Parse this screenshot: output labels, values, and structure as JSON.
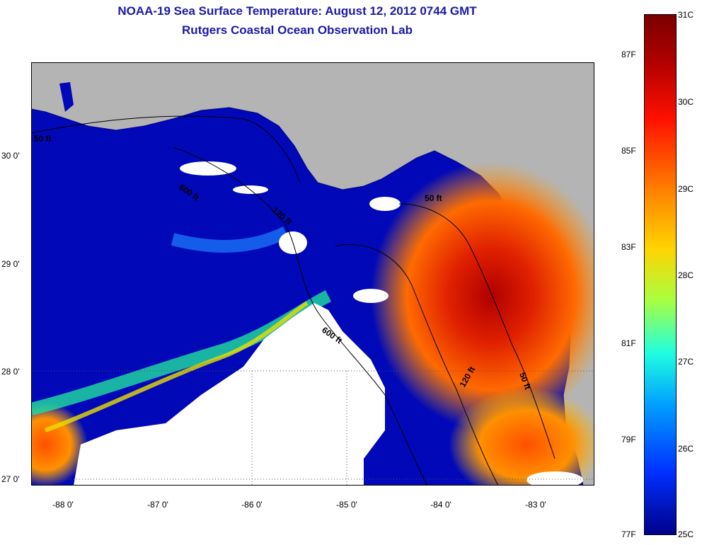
{
  "title": "NOAA-19 Sea Surface Temperature:  August 12, 2012 0744 GMT",
  "subtitle": "Rutgers Coastal Ocean Observation Lab",
  "map": {
    "lat_labels": [
      "30 0'",
      "29 0'",
      "28 0'",
      "27 0'"
    ],
    "lon_labels": [
      "-88 0'",
      "-87 0'",
      "-86 0'",
      "-85 0'",
      "-84 0'",
      "-83 0'"
    ],
    "contour_labels": [
      "50 ft",
      "120 ft",
      "600 ft",
      "600 ft",
      "50 ft",
      "120 ft",
      "50 ft"
    ],
    "colors": {
      "land": "#b4b4b4",
      "cloud": "#ffffff",
      "sea_cool": "#0010c8",
      "sea_warm": "#e83000"
    }
  },
  "colorbar": {
    "celsius": [
      "31C",
      "30C",
      "29C",
      "28C",
      "27C",
      "26C",
      "25C"
    ],
    "fahrenheit": [
      "87F",
      "85F",
      "83F",
      "81F",
      "79F",
      "77F"
    ]
  }
}
